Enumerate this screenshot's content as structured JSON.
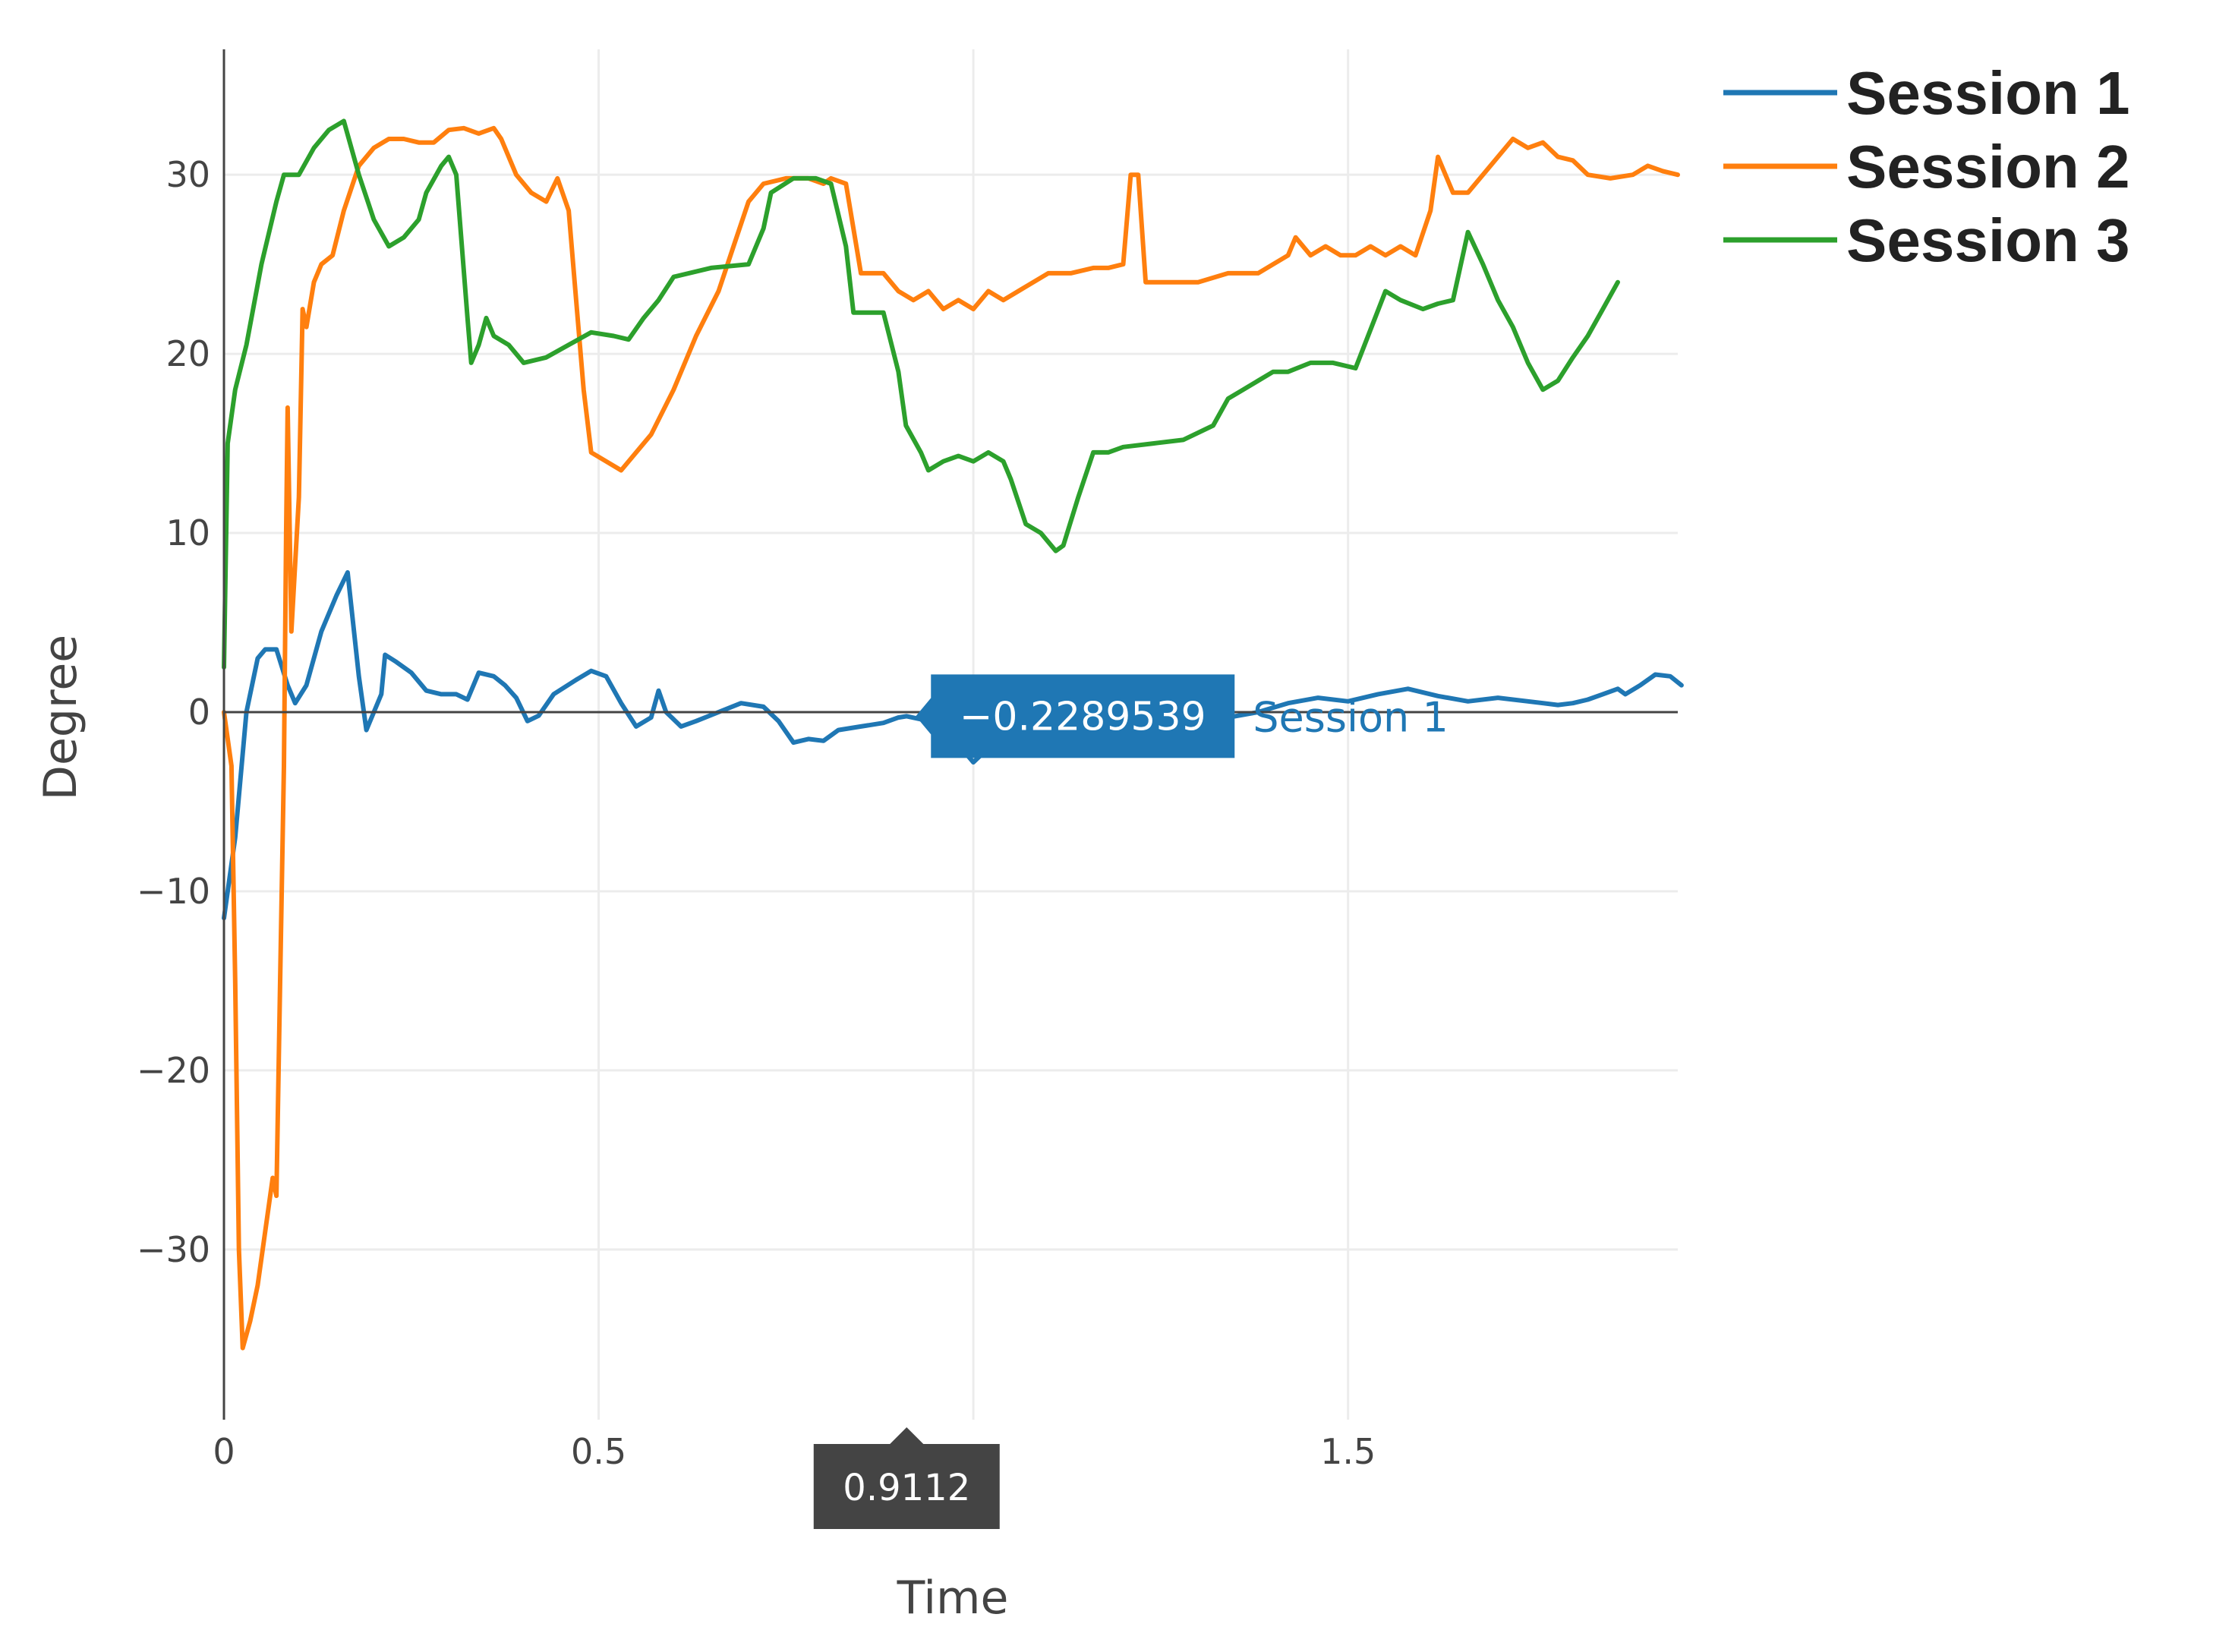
{
  "chart_data": {
    "type": "line",
    "xlabel": "Time",
    "ylabel": "Degree",
    "xlim": [
      0,
      1.94
    ],
    "ylim": [
      -39.5,
      37
    ],
    "x_ticks": [
      0,
      0.5,
      1.5
    ],
    "x_tick_labels": [
      "0",
      "0.5",
      "1.5"
    ],
    "y_ticks": [
      30,
      20,
      10,
      0,
      -10,
      -20,
      -30
    ],
    "y_tick_labels": [
      "30",
      "20",
      "10",
      "0",
      "−10",
      "−20",
      "−30"
    ],
    "grid": true,
    "legend_position": "top-right",
    "series": [
      {
        "name": "Session 1",
        "color": "#1f77b4",
        "points": [
          [
            0,
            -11.5
          ],
          [
            0.015,
            -7
          ],
          [
            0.03,
            0
          ],
          [
            0.045,
            3
          ],
          [
            0.055,
            3.5
          ],
          [
            0.07,
            3.5
          ],
          [
            0.085,
            1.5
          ],
          [
            0.095,
            0.5
          ],
          [
            0.11,
            1.5
          ],
          [
            0.13,
            4.5
          ],
          [
            0.15,
            6.5
          ],
          [
            0.165,
            7.8
          ],
          [
            0.18,
            2
          ],
          [
            0.19,
            -1
          ],
          [
            0.21,
            1
          ],
          [
            0.215,
            3.2
          ],
          [
            0.23,
            2.8
          ],
          [
            0.25,
            2.2
          ],
          [
            0.27,
            1.2
          ],
          [
            0.29,
            1
          ],
          [
            0.31,
            1
          ],
          [
            0.325,
            0.7
          ],
          [
            0.34,
            2.2
          ],
          [
            0.36,
            2
          ],
          [
            0.375,
            1.5
          ],
          [
            0.39,
            0.8
          ],
          [
            0.405,
            -0.5
          ],
          [
            0.42,
            -0.2
          ],
          [
            0.44,
            1
          ],
          [
            0.47,
            1.8
          ],
          [
            0.49,
            2.3
          ],
          [
            0.51,
            2
          ],
          [
            0.53,
            0.5
          ],
          [
            0.55,
            -0.8
          ],
          [
            0.57,
            -0.3
          ],
          [
            0.58,
            1.2
          ],
          [
            0.59,
            0
          ],
          [
            0.61,
            -0.8
          ],
          [
            0.63,
            -0.5
          ],
          [
            0.66,
            0
          ],
          [
            0.69,
            0.5
          ],
          [
            0.72,
            0.3
          ],
          [
            0.74,
            -0.5
          ],
          [
            0.76,
            -1.7
          ],
          [
            0.78,
            -1.5
          ],
          [
            0.8,
            -1.6
          ],
          [
            0.82,
            -1
          ],
          [
            0.85,
            -0.8
          ],
          [
            0.88,
            -0.6
          ],
          [
            0.9,
            -0.3
          ],
          [
            0.911,
            -0.23
          ],
          [
            0.93,
            -0.4
          ],
          [
            0.95,
            -0.8
          ],
          [
            0.97,
            -1.5
          ],
          [
            0.99,
            -2.3
          ],
          [
            1.0,
            -2.8
          ],
          [
            1.02,
            -2
          ],
          [
            1.04,
            -1.2
          ],
          [
            1.07,
            -0.8
          ],
          [
            1.1,
            -0.5
          ],
          [
            1.14,
            0
          ],
          [
            1.18,
            0.3
          ],
          [
            1.22,
            0.5
          ],
          [
            1.26,
            0
          ],
          [
            1.3,
            -0.5
          ],
          [
            1.34,
            -0.3
          ],
          [
            1.38,
            0
          ],
          [
            1.42,
            0.5
          ],
          [
            1.46,
            0.8
          ],
          [
            1.5,
            0.6
          ],
          [
            1.54,
            1
          ],
          [
            1.58,
            1.3
          ],
          [
            1.62,
            0.9
          ],
          [
            1.66,
            0.6
          ],
          [
            1.7,
            0.8
          ],
          [
            1.74,
            0.6
          ],
          [
            1.78,
            0.4
          ],
          [
            1.8,
            0.5
          ],
          [
            1.82,
            0.7
          ],
          [
            1.84,
            1
          ],
          [
            1.86,
            1.3
          ],
          [
            1.87,
            1
          ],
          [
            1.89,
            1.5
          ],
          [
            1.91,
            2.1
          ],
          [
            1.93,
            2
          ],
          [
            1.945,
            1.5
          ]
        ]
      },
      {
        "name": "Session 2",
        "color": "#ff7f0e",
        "points": [
          [
            0,
            0
          ],
          [
            0.01,
            -3
          ],
          [
            0.015,
            -15
          ],
          [
            0.02,
            -30
          ],
          [
            0.025,
            -35.5
          ],
          [
            0.035,
            -34
          ],
          [
            0.045,
            -32
          ],
          [
            0.055,
            -29
          ],
          [
            0.065,
            -26
          ],
          [
            0.07,
            -27
          ],
          [
            0.075,
            -15
          ],
          [
            0.08,
            -3
          ],
          [
            0.083,
            10
          ],
          [
            0.085,
            17
          ],
          [
            0.09,
            4.5
          ],
          [
            0.1,
            12
          ],
          [
            0.105,
            22.5
          ],
          [
            0.11,
            21.5
          ],
          [
            0.12,
            24
          ],
          [
            0.13,
            25
          ],
          [
            0.145,
            25.5
          ],
          [
            0.16,
            28
          ],
          [
            0.18,
            30.5
          ],
          [
            0.2,
            31.5
          ],
          [
            0.22,
            32
          ],
          [
            0.24,
            32
          ],
          [
            0.26,
            31.8
          ],
          [
            0.28,
            31.8
          ],
          [
            0.3,
            32.5
          ],
          [
            0.32,
            32.6
          ],
          [
            0.34,
            32.3
          ],
          [
            0.36,
            32.6
          ],
          [
            0.37,
            32
          ],
          [
            0.39,
            30
          ],
          [
            0.41,
            29
          ],
          [
            0.43,
            28.5
          ],
          [
            0.445,
            29.8
          ],
          [
            0.46,
            28
          ],
          [
            0.47,
            23
          ],
          [
            0.48,
            18
          ],
          [
            0.49,
            14.5
          ],
          [
            0.51,
            14
          ],
          [
            0.53,
            13.5
          ],
          [
            0.55,
            14.5
          ],
          [
            0.57,
            15.5
          ],
          [
            0.6,
            18
          ],
          [
            0.63,
            21
          ],
          [
            0.66,
            23.5
          ],
          [
            0.68,
            26
          ],
          [
            0.7,
            28.5
          ],
          [
            0.72,
            29.5
          ],
          [
            0.75,
            29.8
          ],
          [
            0.78,
            29.8
          ],
          [
            0.8,
            29.5
          ],
          [
            0.81,
            29.8
          ],
          [
            0.83,
            29.5
          ],
          [
            0.85,
            24.5
          ],
          [
            0.88,
            24.5
          ],
          [
            0.9,
            23.5
          ],
          [
            0.92,
            23
          ],
          [
            0.94,
            23.5
          ],
          [
            0.96,
            22.5
          ],
          [
            0.98,
            23
          ],
          [
            1.0,
            22.5
          ],
          [
            1.02,
            23.5
          ],
          [
            1.04,
            23
          ],
          [
            1.06,
            23.5
          ],
          [
            1.08,
            24
          ],
          [
            1.1,
            24.5
          ],
          [
            1.13,
            24.5
          ],
          [
            1.16,
            24.8
          ],
          [
            1.18,
            24.8
          ],
          [
            1.2,
            25
          ],
          [
            1.21,
            30
          ],
          [
            1.22,
            30
          ],
          [
            1.23,
            24
          ],
          [
            1.26,
            24
          ],
          [
            1.3,
            24
          ],
          [
            1.34,
            24.5
          ],
          [
            1.38,
            24.5
          ],
          [
            1.4,
            25
          ],
          [
            1.42,
            25.5
          ],
          [
            1.43,
            26.5
          ],
          [
            1.45,
            25.5
          ],
          [
            1.47,
            26
          ],
          [
            1.49,
            25.5
          ],
          [
            1.51,
            25.5
          ],
          [
            1.53,
            26
          ],
          [
            1.55,
            25.5
          ],
          [
            1.57,
            26
          ],
          [
            1.59,
            25.5
          ],
          [
            1.61,
            28
          ],
          [
            1.62,
            31
          ],
          [
            1.64,
            29
          ],
          [
            1.66,
            29
          ],
          [
            1.69,
            30.5
          ],
          [
            1.72,
            32
          ],
          [
            1.74,
            31.5
          ],
          [
            1.76,
            31.8
          ],
          [
            1.78,
            31
          ],
          [
            1.8,
            30.8
          ],
          [
            1.82,
            30
          ],
          [
            1.85,
            29.8
          ],
          [
            1.88,
            30
          ],
          [
            1.9,
            30.5
          ],
          [
            1.92,
            30.2
          ],
          [
            1.94,
            30
          ]
        ]
      },
      {
        "name": "Session 3",
        "color": "#2ca02c",
        "points": [
          [
            0,
            2.5
          ],
          [
            0.005,
            15
          ],
          [
            0.015,
            18
          ],
          [
            0.03,
            20.5
          ],
          [
            0.05,
            25
          ],
          [
            0.07,
            28.5
          ],
          [
            0.08,
            30
          ],
          [
            0.1,
            30
          ],
          [
            0.12,
            31.5
          ],
          [
            0.14,
            32.5
          ],
          [
            0.16,
            33
          ],
          [
            0.18,
            30
          ],
          [
            0.2,
            27.5
          ],
          [
            0.22,
            26
          ],
          [
            0.24,
            26.5
          ],
          [
            0.26,
            27.5
          ],
          [
            0.27,
            29
          ],
          [
            0.29,
            30.5
          ],
          [
            0.3,
            31
          ],
          [
            0.31,
            30
          ],
          [
            0.325,
            22
          ],
          [
            0.33,
            19.5
          ],
          [
            0.34,
            20.5
          ],
          [
            0.35,
            22
          ],
          [
            0.36,
            21
          ],
          [
            0.38,
            20.5
          ],
          [
            0.4,
            19.5
          ],
          [
            0.43,
            19.8
          ],
          [
            0.46,
            20.5
          ],
          [
            0.49,
            21.2
          ],
          [
            0.52,
            21
          ],
          [
            0.54,
            20.8
          ],
          [
            0.56,
            22
          ],
          [
            0.58,
            23
          ],
          [
            0.6,
            24.3
          ],
          [
            0.65,
            24.8
          ],
          [
            0.7,
            25
          ],
          [
            0.72,
            27
          ],
          [
            0.73,
            29
          ],
          [
            0.76,
            29.8
          ],
          [
            0.79,
            29.8
          ],
          [
            0.81,
            29.5
          ],
          [
            0.83,
            26
          ],
          [
            0.84,
            22.3
          ],
          [
            0.88,
            22.3
          ],
          [
            0.9,
            19
          ],
          [
            0.91,
            16
          ],
          [
            0.93,
            14.5
          ],
          [
            0.94,
            13.5
          ],
          [
            0.96,
            14
          ],
          [
            0.98,
            14.3
          ],
          [
            1.0,
            14
          ],
          [
            1.02,
            14.5
          ],
          [
            1.04,
            14
          ],
          [
            1.05,
            13
          ],
          [
            1.07,
            10.5
          ],
          [
            1.09,
            10
          ],
          [
            1.11,
            9
          ],
          [
            1.12,
            9.3
          ],
          [
            1.14,
            12
          ],
          [
            1.16,
            14.5
          ],
          [
            1.18,
            14.5
          ],
          [
            1.2,
            14.8
          ],
          [
            1.24,
            15
          ],
          [
            1.28,
            15.2
          ],
          [
            1.32,
            16
          ],
          [
            1.34,
            17.5
          ],
          [
            1.36,
            18
          ],
          [
            1.38,
            18.5
          ],
          [
            1.4,
            19
          ],
          [
            1.42,
            19
          ],
          [
            1.45,
            19.5
          ],
          [
            1.48,
            19.5
          ],
          [
            1.51,
            19.2
          ],
          [
            1.55,
            23.5
          ],
          [
            1.57,
            23
          ],
          [
            1.6,
            22.5
          ],
          [
            1.62,
            22.8
          ],
          [
            1.64,
            23
          ],
          [
            1.66,
            26.8
          ],
          [
            1.68,
            25
          ],
          [
            1.7,
            23
          ],
          [
            1.72,
            21.5
          ],
          [
            1.74,
            19.5
          ],
          [
            1.76,
            18
          ],
          [
            1.78,
            18.5
          ],
          [
            1.8,
            19.8
          ],
          [
            1.82,
            21
          ],
          [
            1.84,
            22.5
          ],
          [
            1.86,
            24
          ]
        ]
      }
    ],
    "hover": {
      "x": 0.911,
      "x_label": "0.9112",
      "value_label": "−0.2289539",
      "series_label": "Session 1",
      "color": "#1f77b4",
      "x_label_color": "#444444"
    }
  }
}
